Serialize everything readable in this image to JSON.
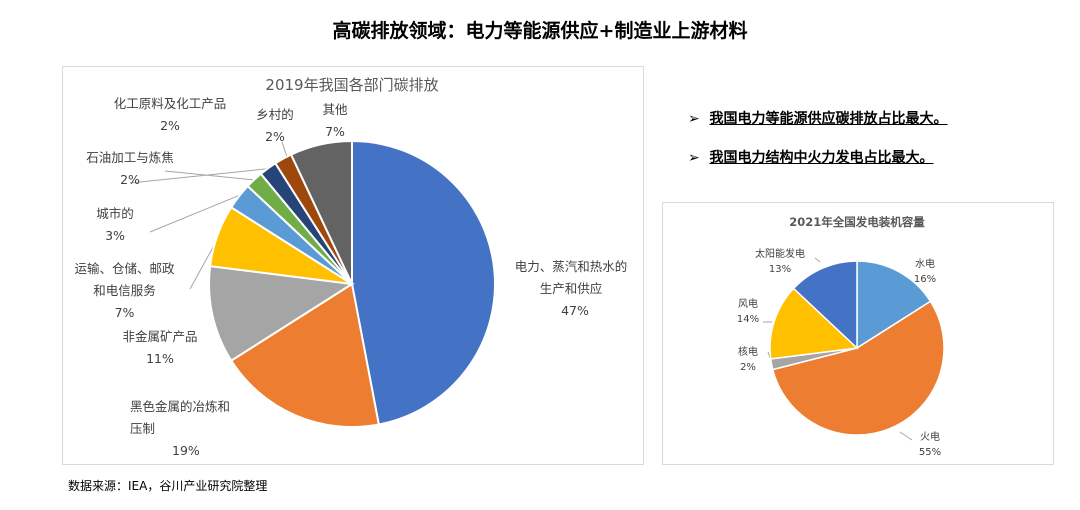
{
  "title": "高碳排放领域：电力等能源供应+制造业上游材料",
  "bullets": [
    "我国电力等能源供应碳排放占比最大。",
    "我国电力结构中火力发电占比最大。"
  ],
  "bullet_icon": "arrow-right-icon",
  "source": "数据来源：IEA，谷川产业研究院整理",
  "chart_data": [
    {
      "type": "pie",
      "title": "2019年我国各部门碳排放",
      "labels": [
        "电力、蒸汽和热水的生产和供应",
        "黑色金属的冶炼和压制",
        "非金属矿产品",
        "运输、仓储、邮政和电信服务",
        "城市的",
        "石油加工与炼焦",
        "化工原料及化工产品",
        "乡村的",
        "其他"
      ],
      "values": [
        47,
        19,
        11,
        7,
        3,
        2,
        2,
        2,
        7
      ],
      "value_labels": [
        "47%",
        "19%",
        "11%",
        "7%",
        "3%",
        "2%",
        "2%",
        "2%",
        "7%"
      ],
      "colors": [
        "#4472C4",
        "#ED7D31",
        "#A5A5A5",
        "#FFC000",
        "#5B9BD5",
        "#70AD47",
        "#264478",
        "#9E480E",
        "#636363"
      ]
    },
    {
      "type": "pie",
      "title": "2021年全国发电装机容量",
      "labels": [
        "水电",
        "火电",
        "核电",
        "风电",
        "太阳能发电"
      ],
      "values": [
        16,
        55,
        2,
        14,
        13
      ],
      "value_labels": [
        "16%",
        "55%",
        "2%",
        "14%",
        "13%"
      ],
      "colors": [
        "#5B9BD5",
        "#ED7D31",
        "#A5A5A5",
        "#FFC000",
        "#4472C4"
      ]
    }
  ]
}
